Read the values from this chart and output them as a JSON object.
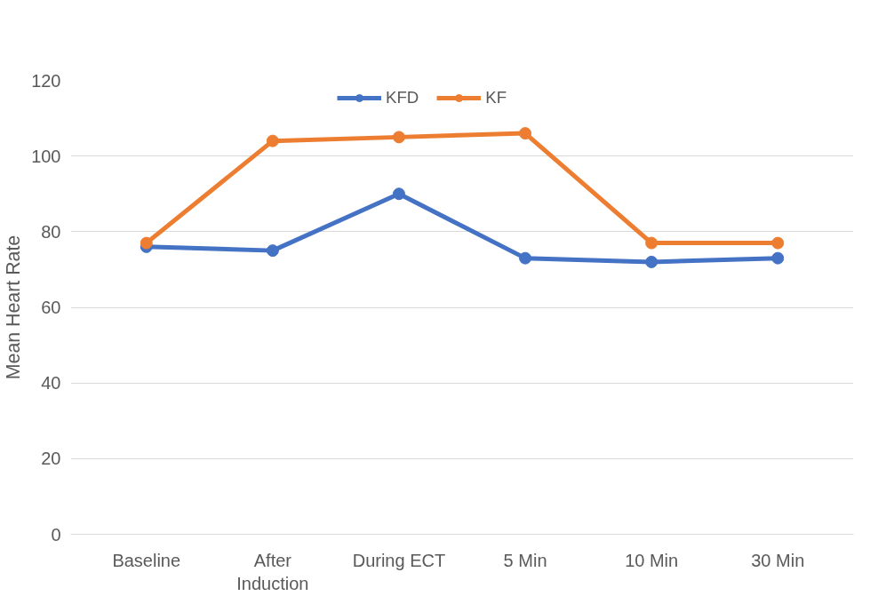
{
  "chart_data": {
    "type": "line",
    "ylabel": "Mean Heart Rate",
    "categories": [
      "Baseline",
      "After Induction",
      "During ECT",
      "5 Min",
      "10 Min",
      "30 Min"
    ],
    "series": [
      {
        "name": "KFD",
        "color": "#4472c4",
        "values": [
          76,
          75,
          90,
          73,
          72,
          73
        ]
      },
      {
        "name": "KF",
        "color": "#ed7d31",
        "values": [
          77,
          104,
          105,
          106,
          77,
          77
        ]
      }
    ],
    "ylim": [
      0,
      120
    ],
    "yticks": [
      0,
      20,
      40,
      60,
      80,
      100,
      120
    ],
    "grid": "y",
    "legend": "top",
    "marker": "circle",
    "line_style": "solid"
  }
}
